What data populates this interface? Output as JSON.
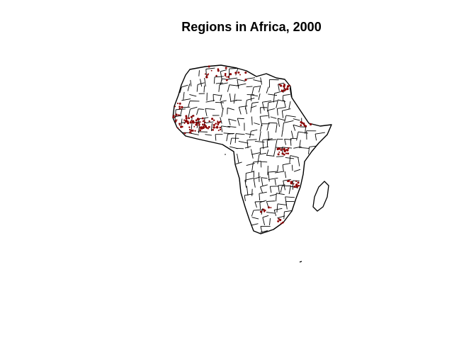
{
  "title": "Regions in Africa, 2000",
  "colors": {
    "background": "#ffffff",
    "border": "#000000",
    "highlight": "#8b0000"
  }
}
